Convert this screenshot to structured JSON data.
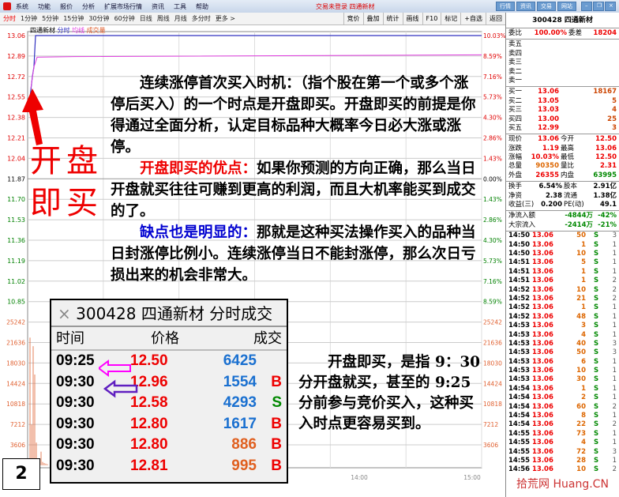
{
  "menubar": {
    "items": [
      "系统",
      "功能",
      "报价",
      "分析",
      "扩展市场行情",
      "资讯",
      "工具",
      "帮助"
    ],
    "title": "交易未登录 四通新材",
    "win_buttons": [
      "行情",
      "资讯",
      "交易",
      "网站"
    ]
  },
  "toolbar": {
    "periods": [
      "分时",
      "1分钟",
      "5分钟",
      "15分钟",
      "30分钟",
      "60分钟",
      "日线",
      "周线",
      "月线",
      "多分时",
      "更多 >"
    ],
    "right": [
      "竞价",
      "叠加",
      "统计",
      "画线",
      "F10",
      "标记",
      "+自选",
      "返回"
    ]
  },
  "chart": {
    "legend": {
      "name": "四通新材",
      "a": "分时",
      "b": "均线",
      "c": "成交量"
    },
    "price_labels": [
      "13.06",
      "12.89",
      "12.72",
      "12.55",
      "12.38",
      "12.21",
      "12.04",
      "11.87",
      "11.70",
      "11.53",
      "11.36",
      "11.19",
      "11.02",
      "10.85"
    ],
    "pct_labels": [
      "10.03%",
      "8.59%",
      "7.16%",
      "5.73%",
      "4.30%",
      "2.86%",
      "1.43%",
      "0.00%",
      "1.43%",
      "2.86%",
      "4.30%",
      "5.73%",
      "7.16%",
      "8.59%"
    ],
    "vol_labels": [
      "25242",
      "21636",
      "18030",
      "14424",
      "10818",
      "7212",
      "3606"
    ],
    "time_labels": [
      "14:00",
      "15:00"
    ],
    "colors": {
      "up": "#e00000",
      "down": "#008000",
      "price_line": "#3030c0",
      "avg_line": "#e040e0",
      "volume": "#e06030"
    }
  },
  "panel": {
    "title": "300428 四通新材",
    "weibi": {
      "l1": "委比",
      "v1": "100.00%",
      "l2": "委差",
      "v2": "18204"
    },
    "sell": [
      {
        "l": "卖五"
      },
      {
        "l": "卖四"
      },
      {
        "l": "卖三"
      },
      {
        "l": "卖二"
      },
      {
        "l": "卖一"
      }
    ],
    "buy": [
      {
        "l": "买一",
        "p": "13.06",
        "v": "18167"
      },
      {
        "l": "买二",
        "p": "13.05",
        "v": "5"
      },
      {
        "l": "买三",
        "p": "13.03",
        "v": "4"
      },
      {
        "l": "买四",
        "p": "13.00",
        "v": "25"
      },
      {
        "l": "买五",
        "p": "12.99",
        "v": "3"
      }
    ],
    "quote": [
      {
        "l1": "现价",
        "v1": "13.06",
        "l2": "今开",
        "v2": "12.50"
      },
      {
        "l1": "涨跌",
        "v1": "1.19",
        "l2": "最高",
        "v2": "13.06"
      },
      {
        "l1": "涨幅",
        "v1": "10.03%",
        "l2": "最低",
        "v2": "12.50"
      },
      {
        "l1": "总量",
        "v1": "90350",
        "l2": "量比",
        "v2": "2.31"
      },
      {
        "l1": "外盘",
        "v1": "26355",
        "l2": "内盘",
        "v2": "63995"
      }
    ],
    "info": [
      {
        "l1": "换手",
        "v1": "6.54%",
        "l2": "股本",
        "v2": "2.91亿"
      },
      {
        "l1": "净资",
        "v1": "2.38",
        "l2": "流通",
        "v2": "1.38亿"
      },
      {
        "l1": "收益(三)",
        "v1": "0.200",
        "l2": "PE(动)",
        "v2": "49.1"
      }
    ],
    "flow": [
      {
        "l": "净流入额",
        "v": "-4844万",
        "p": "-42%"
      },
      {
        "l": "大宗流入",
        "v": "-2414万",
        "p": "-21%"
      }
    ],
    "ticks": [
      [
        "14:50",
        "13.06",
        "50",
        "S",
        "3"
      ],
      [
        "14:50",
        "13.06",
        "1",
        "S",
        "1"
      ],
      [
        "14:50",
        "13.06",
        "10",
        "S",
        "1"
      ],
      [
        "14:51",
        "13.06",
        "5",
        "S",
        "1"
      ],
      [
        "14:51",
        "13.06",
        "1",
        "S",
        "1"
      ],
      [
        "14:51",
        "13.06",
        "1",
        "S",
        "2"
      ],
      [
        "14:52",
        "13.06",
        "10",
        "S",
        "2"
      ],
      [
        "14:52",
        "13.06",
        "21",
        "S",
        "2"
      ],
      [
        "14:52",
        "13.06",
        "1",
        "S",
        "1"
      ],
      [
        "14:52",
        "13.06",
        "48",
        "S",
        "1"
      ],
      [
        "14:53",
        "13.06",
        "3",
        "S",
        "1"
      ],
      [
        "14:53",
        "13.06",
        "4",
        "S",
        "1"
      ],
      [
        "14:53",
        "13.06",
        "40",
        "S",
        "3"
      ],
      [
        "14:53",
        "13.06",
        "50",
        "S",
        "3"
      ],
      [
        "14:53",
        "13.06",
        "6",
        "S",
        "1"
      ],
      [
        "14:53",
        "13.06",
        "10",
        "S",
        "1"
      ],
      [
        "14:53",
        "13.06",
        "30",
        "S",
        "1"
      ],
      [
        "14:54",
        "13.06",
        "1",
        "S",
        "1"
      ],
      [
        "14:54",
        "13.06",
        "2",
        "S",
        "1"
      ],
      [
        "14:54",
        "13.06",
        "60",
        "S",
        "2"
      ],
      [
        "14:54",
        "13.06",
        "8",
        "S",
        "1"
      ],
      [
        "14:54",
        "13.06",
        "22",
        "S",
        "2"
      ],
      [
        "14:55",
        "13.06",
        "73",
        "S",
        "1"
      ],
      [
        "14:55",
        "13.06",
        "4",
        "S",
        "1"
      ],
      [
        "14:55",
        "13.06",
        "72",
        "S",
        "3"
      ],
      [
        "14:55",
        "13.06",
        "28",
        "S",
        "1"
      ],
      [
        "14:56",
        "13.06",
        "10",
        "S",
        "2"
      ]
    ]
  },
  "annotation": {
    "big1": "开盘",
    "big2": "即买",
    "p1": "连续涨停首次买入时机：（指个股在第一个或多个涨停后买入）的一个时点是开盘即买。开盘即买的前提是你得通过全面分析，认定目标品种大概率今日必大涨或涨停。",
    "p2_head": "开盘即买的优点：",
    "p2": "如果你预测的方向正确，那么当日开盘就买往往可赚到更高的利润，而且大机率能买到成交的了。",
    "p3_head": "缺点也是明显的：",
    "p3": "那就是这种买法操作买入的品种当日封涨停比例小。连续涨停当日不能封涨停，那么次日亏损出来的机会非常大。",
    "p4": "开盘即买，是指 9：30 分开盘就买，甚至的 9:25 分前参与竞价买入，这种买入时点更容易买到。",
    "page_num": "2"
  },
  "overlay": {
    "title": "300428 四通新材 分时成交",
    "headers": [
      "时间",
      "价格",
      "成交"
    ],
    "rows": [
      {
        "t": "09:25",
        "p": "12.50",
        "v": "6425",
        "s": ""
      },
      {
        "t": "09:30",
        "p": "12.96",
        "v": "1554",
        "s": "B"
      },
      {
        "t": "09:30",
        "p": "12.58",
        "v": "4293",
        "s": "S"
      },
      {
        "t": "09:30",
        "p": "12.80",
        "v": "1617",
        "s": "B"
      },
      {
        "t": "09:30",
        "p": "12.80",
        "v": "886",
        "s": "B"
      },
      {
        "t": "09:30",
        "p": "12.81",
        "v": "995",
        "s": "B"
      }
    ]
  },
  "watermark": "拾荒网 Huang.CN"
}
